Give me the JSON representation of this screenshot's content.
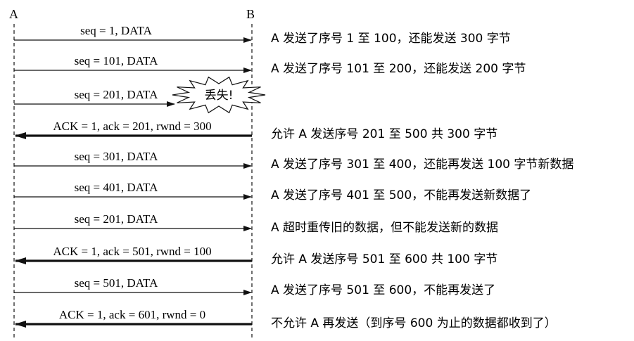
{
  "nodes": {
    "a": "A",
    "b": "B"
  },
  "loss_label": "丢失!",
  "messages": [
    {
      "label": "seq = 1, DATA",
      "direction": "A→B",
      "kind": "data",
      "lost": false,
      "note": "A 发送了序号 1 至 100，还能发送 300 字节"
    },
    {
      "label": "seq = 101, DATA",
      "direction": "A→B",
      "kind": "data",
      "lost": false,
      "note": "A 发送了序号 101 至 200，还能发送 200 字节"
    },
    {
      "label": "seq = 201, DATA",
      "direction": "A→B",
      "kind": "data",
      "lost": true,
      "note": ""
    },
    {
      "label": "ACK = 1, ack = 201, rwnd = 300",
      "direction": "B→A",
      "kind": "ack",
      "lost": false,
      "note": "允许 A 发送序号 201 至 500  共 300 字节"
    },
    {
      "label": "seq = 301, DATA",
      "direction": "A→B",
      "kind": "data",
      "lost": false,
      "note": "A 发送了序号 301 至 400，还能再发送 100 字节新数据"
    },
    {
      "label": "seq = 401, DATA",
      "direction": "A→B",
      "kind": "data",
      "lost": false,
      "note": "A 发送了序号 401 至 500，不能再发送新数据了"
    },
    {
      "label": "seq = 201, DATA",
      "direction": "A→B",
      "kind": "data",
      "lost": false,
      "note": "A 超时重传旧的数据，但不能发送新的数据"
    },
    {
      "label": "ACK = 1, ack = 501, rwnd = 100",
      "direction": "B→A",
      "kind": "ack",
      "lost": false,
      "note": "允许 A 发送序号 501 至 600 共 100 字节"
    },
    {
      "label": "seq = 501, DATA",
      "direction": "A→B",
      "kind": "data",
      "lost": false,
      "note": "A 发送了序号 501 至 600，不能再发送了"
    },
    {
      "label": "ACK = 1, ack = 601, rwnd = 0",
      "direction": "B→A",
      "kind": "ack",
      "lost": false,
      "note": "不允许 A 再发送（到序号 600 为止的数据都收到了）"
    }
  ]
}
